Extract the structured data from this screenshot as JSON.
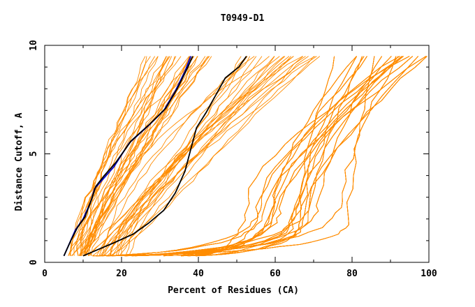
{
  "chart_data": {
    "type": "line",
    "title": "T0949-D1",
    "xlabel": "Percent of Residues (CA)",
    "ylabel": "Distance Cutoff, A",
    "xlim": [
      0,
      100
    ],
    "ylim": [
      0,
      10
    ],
    "x_ticks": [
      0,
      20,
      40,
      60,
      80,
      100
    ],
    "y_ticks": [
      0,
      5,
      10
    ],
    "grid": false,
    "legend": "none",
    "colors": {
      "background_series": "#ff8c00",
      "highlight_black": "#000000",
      "highlight_blue": "#0000cc"
    },
    "bands": [
      {
        "name": "steep-left",
        "count": 30,
        "start_x": [
          5,
          12
        ],
        "end_x": [
          26,
          44
        ]
      },
      {
        "name": "mid",
        "count": 25,
        "start_x": [
          8,
          22
        ],
        "end_x": [
          50,
          72
        ]
      },
      {
        "name": "dense-right",
        "count": 140,
        "start_x": [
          12,
          40
        ],
        "knee_y": [
          1.5,
          3.2
        ],
        "knee_x": [
          48,
          82
        ],
        "end_x": [
          74,
          100
        ]
      }
    ],
    "highlight_series": [
      {
        "color": "#0000cc",
        "points": [
          [
            5.0,
            0.3
          ],
          [
            6.5,
            0.9
          ],
          [
            8.0,
            1.5
          ],
          [
            10.0,
            2.0
          ],
          [
            12.0,
            2.8
          ],
          [
            13.0,
            3.4
          ],
          [
            15.0,
            3.8
          ],
          [
            18.0,
            4.4
          ],
          [
            22.0,
            5.5
          ],
          [
            27.0,
            6.3
          ],
          [
            31.0,
            7.0
          ],
          [
            34.0,
            7.9
          ],
          [
            36.5,
            8.8
          ],
          [
            38.0,
            9.5
          ]
        ]
      },
      {
        "color": "#000000",
        "points": [
          [
            5.0,
            0.3
          ],
          [
            6.8,
            1.0
          ],
          [
            8.5,
            1.6
          ],
          [
            10.5,
            2.1
          ],
          [
            12.2,
            2.9
          ],
          [
            13.3,
            3.5
          ],
          [
            15.5,
            4.0
          ],
          [
            18.5,
            4.6
          ],
          [
            22.5,
            5.6
          ],
          [
            27.5,
            6.4
          ],
          [
            31.5,
            7.1
          ],
          [
            34.5,
            8.0
          ],
          [
            37.0,
            8.9
          ],
          [
            38.5,
            9.5
          ]
        ]
      },
      {
        "color": "#000000",
        "points": [
          [
            10.0,
            0.3
          ],
          [
            18.0,
            0.9
          ],
          [
            23.0,
            1.3
          ],
          [
            27.0,
            1.8
          ],
          [
            31.0,
            2.4
          ],
          [
            34.0,
            3.2
          ],
          [
            36.5,
            4.2
          ],
          [
            38.0,
            5.2
          ],
          [
            39.5,
            6.2
          ],
          [
            42.0,
            6.9
          ],
          [
            44.5,
            7.7
          ],
          [
            47.0,
            8.5
          ],
          [
            50.5,
            9.0
          ],
          [
            52.5,
            9.5
          ]
        ]
      }
    ]
  }
}
